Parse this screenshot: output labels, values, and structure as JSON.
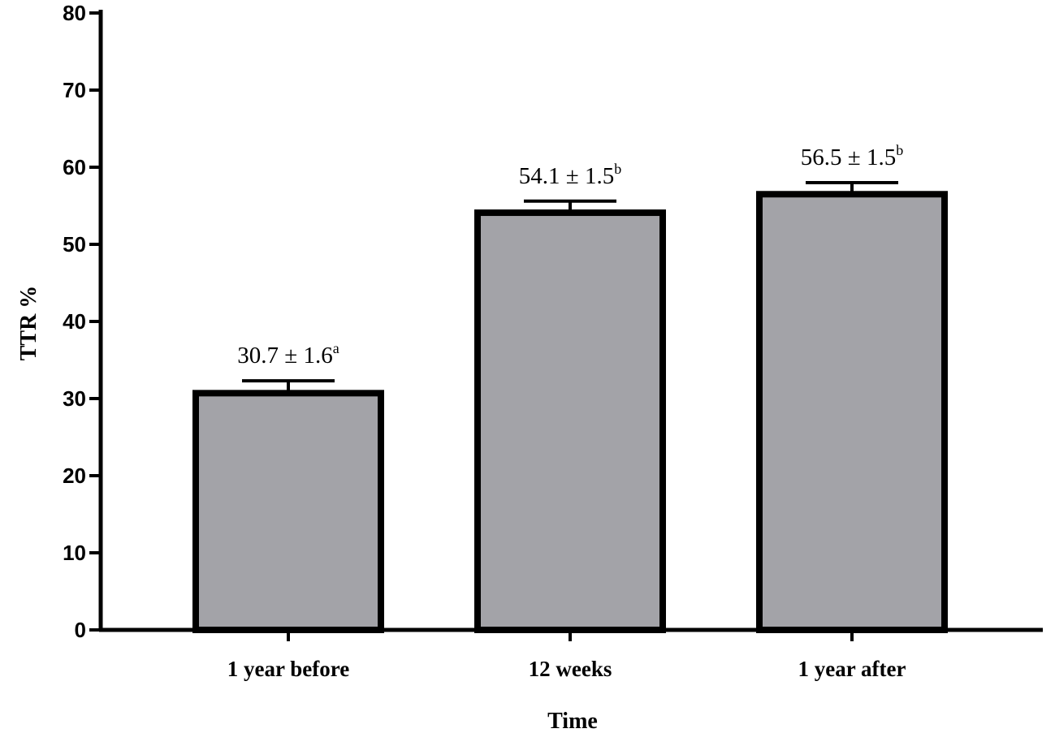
{
  "chart_data": {
    "type": "bar",
    "categories": [
      "1 year before",
      "12 weeks",
      "1 year after"
    ],
    "values": [
      30.7,
      54.1,
      56.5
    ],
    "errors": [
      1.6,
      1.5,
      1.5
    ],
    "data_labels": [
      {
        "text": "30.7 ± 1.6",
        "sup": "a"
      },
      {
        "text": "54.1 ± 1.5",
        "sup": "b"
      },
      {
        "text": "56.5 ± 1.5",
        "sup": "b"
      }
    ],
    "xlabel": "Time",
    "ylabel": "TTR %",
    "ylim": [
      0,
      80
    ],
    "yticks": [
      "0",
      "10",
      "20",
      "30",
      "40",
      "50",
      "60",
      "70",
      "80"
    ],
    "grid": false,
    "bar_color": "#a3a3a8",
    "bar_edge_color": "#000000"
  }
}
